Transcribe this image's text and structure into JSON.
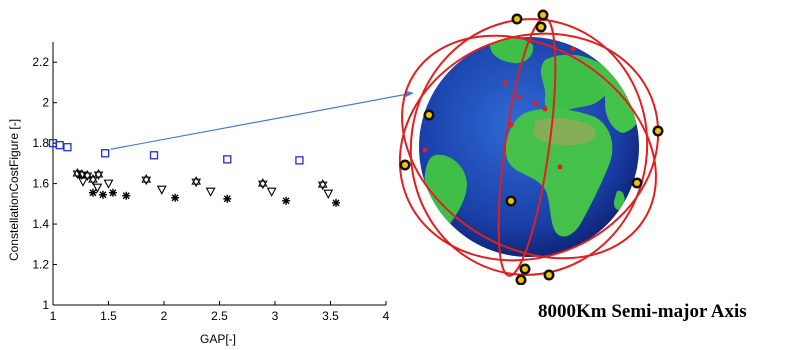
{
  "caption": "8000Km Semi-major Axis",
  "chart_data": {
    "type": "scatter",
    "xlabel": "GAP[-]",
    "ylabel": "ConstellationCostFigure [-]",
    "xlim": [
      1,
      4
    ],
    "ylim": [
      1,
      2.3
    ],
    "xticks": [
      "1",
      "1.5",
      "2",
      "2.5",
      "3",
      "3.5",
      "4"
    ],
    "yticks": [
      "1",
      "1.2",
      "1.4",
      "1.6",
      "1.8",
      "2",
      "2.2"
    ],
    "grid": false,
    "series": [
      {
        "marker": "square",
        "color": "#1f2fd0",
        "x": [
          1.0,
          1.06,
          1.13,
          1.47,
          1.91,
          2.57,
          3.22
        ],
        "y": [
          1.8,
          1.79,
          1.78,
          1.75,
          1.74,
          1.72,
          1.715
        ]
      },
      {
        "marker": "triangle-down",
        "color": "#000000",
        "x": [
          1.27,
          1.4,
          1.5,
          1.98,
          2.42,
          2.97,
          3.48
        ],
        "y": [
          1.61,
          1.58,
          1.6,
          1.57,
          1.56,
          1.56,
          1.55
        ]
      },
      {
        "marker": "hexagram",
        "color": "#000000",
        "x": [
          1.22,
          1.26,
          1.31,
          1.36,
          1.41,
          1.84,
          2.29,
          2.89,
          3.43
        ],
        "y": [
          1.65,
          1.645,
          1.64,
          1.62,
          1.645,
          1.62,
          1.61,
          1.6,
          1.595
        ]
      },
      {
        "marker": "asterisk",
        "color": "#000000",
        "x": [
          1.36,
          1.45,
          1.54,
          1.66,
          2.1,
          2.57,
          3.1,
          3.55
        ],
        "y": [
          1.555,
          1.545,
          1.555,
          1.54,
          1.53,
          1.525,
          1.515,
          1.505
        ]
      }
    ],
    "annotation": {
      "type": "arrow",
      "from": [
        1.52,
        1.77
      ],
      "color": "#4a7fc7"
    }
  }
}
